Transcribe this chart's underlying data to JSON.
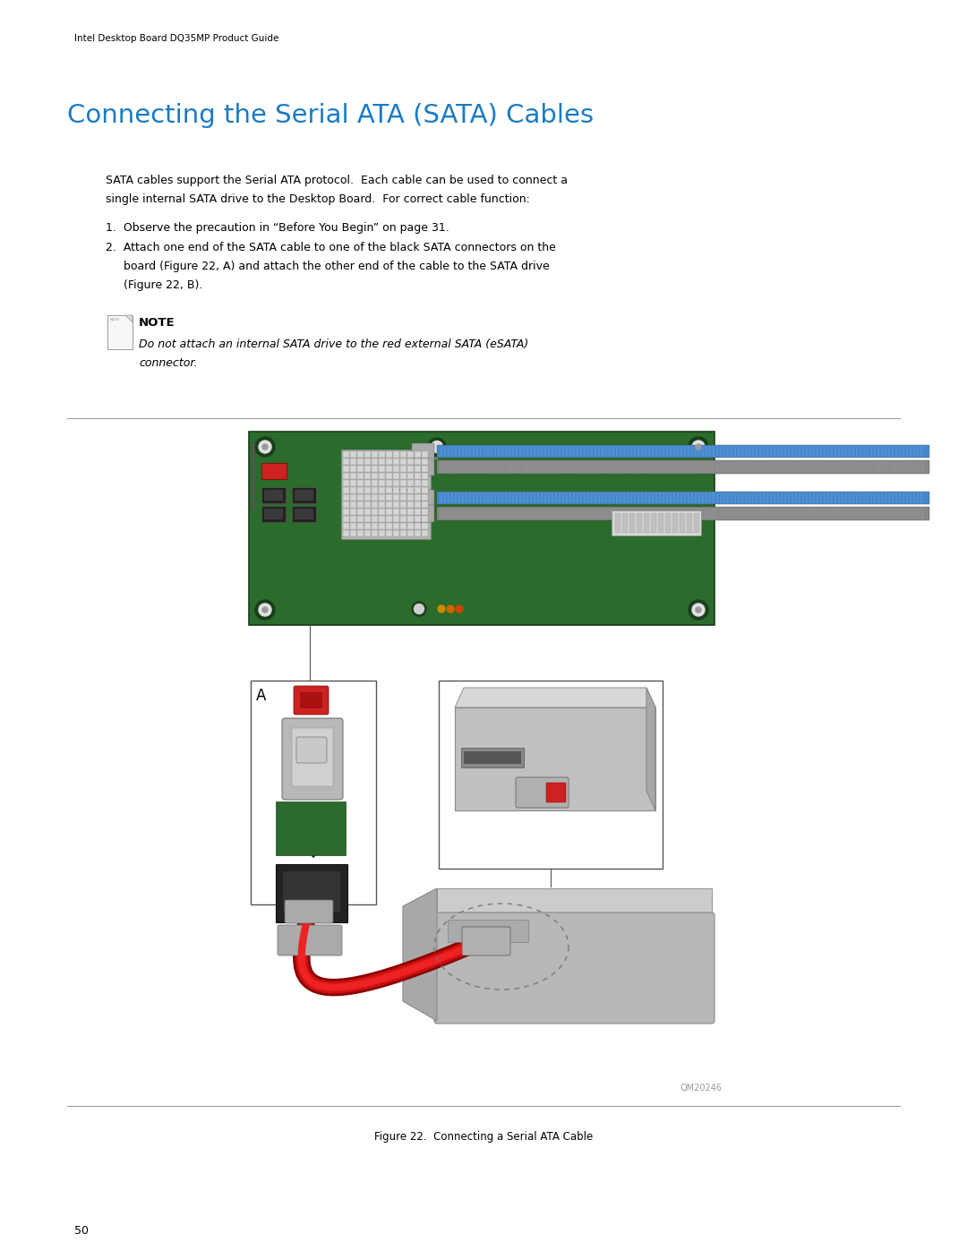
{
  "background_color": "#ffffff",
  "page_width": 10.8,
  "page_height": 13.97,
  "header_text": "Intel Desktop Board DQ35MP Product Guide",
  "header_color": "#000000",
  "header_fontsize": 7.5,
  "title_text": "Connecting the Serial ATA (SATA) Cables",
  "title_color": "#1B7BC4",
  "title_fontsize": 21,
  "body_color": "#000000",
  "body_fontsize": 9.0,
  "intro_line1": "SATA cables support the Serial ATA protocol.  Each cable can be used to connect a",
  "intro_line2": "single internal SATA drive to the Desktop Board.  For correct cable function:",
  "step1": "1.  Observe the precaution in “Before You Begin” on page 31.",
  "step2a": "2.  Attach one end of the SATA cable to one of the black SATA connectors on the",
  "step2b": "     board (Figure 22, A) and attach the other end of the cable to the SATA drive",
  "step2c": "     (Figure 22, B).",
  "note_label": "NOTE",
  "note_text_line1": "Do not attach an internal SATA drive to the red external SATA (eSATA)",
  "note_text_line2": "connector.",
  "figure_caption": "Figure 22.  Connecting a Serial ATA Cable",
  "watermark": "QM20246",
  "page_number": "50",
  "board_color": "#2B6B2B",
  "board_dark": "#1E4E1E",
  "slot_blue": "#4488CC",
  "slot_dark": "#333333",
  "red_connector": "#CC0000",
  "grey_light": "#C8C8C8",
  "grey_mid": "#A0A0A0",
  "grey_dark": "#808080",
  "black_conn": "#2A2A2A",
  "green_conn": "#3A7A3A",
  "cable_red": "#CC1111"
}
